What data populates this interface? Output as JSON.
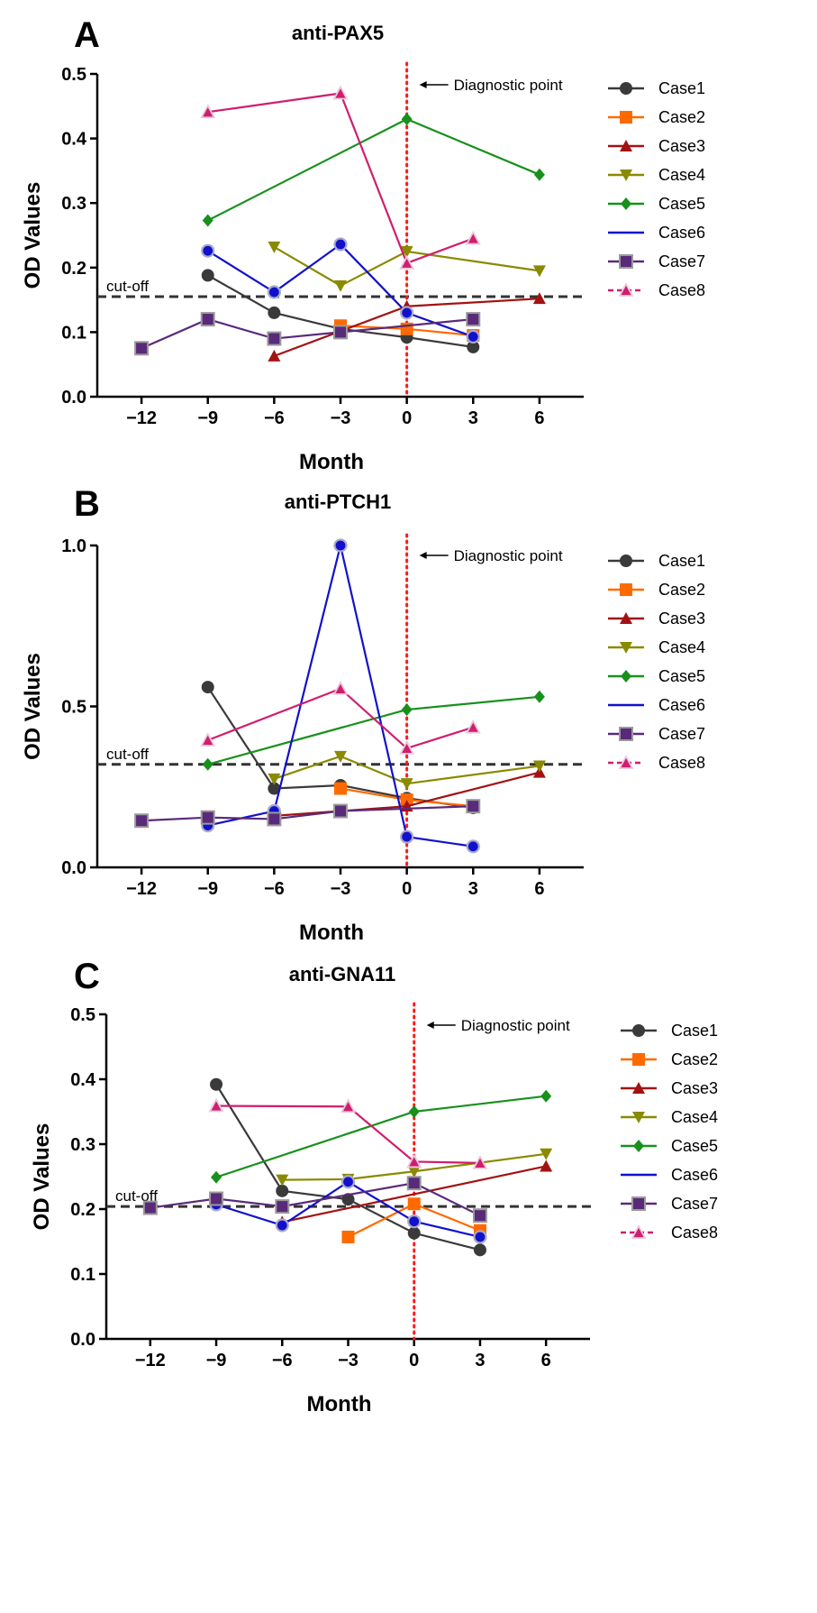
{
  "colors": {
    "Case1": "#3a3a3a",
    "Case2": "#ff6a00",
    "Case3": "#a31212",
    "Case4": "#8a8a00",
    "Case5": "#17911c",
    "Case6": "#1111cc",
    "Case7": "#5a2a7a",
    "Case8": "#d01e6e"
  },
  "chart_data": [
    {
      "type": "line",
      "panel_letter": "A",
      "title": "anti-PAX5",
      "xlabel": "Month",
      "ylabel": "OD Values",
      "xticks": [
        -12,
        -9,
        -6,
        -3,
        0,
        3,
        6
      ],
      "xtick_labels": [
        "−12",
        "−9",
        "−6",
        "−3",
        "0",
        "3",
        "6"
      ],
      "yticks": [
        0,
        0.1,
        0.2,
        0.3,
        0.4,
        0.5
      ],
      "ytick_labels": [
        "0.0",
        "0.1",
        "0.2",
        "0.3",
        "0.4",
        "0.5"
      ],
      "ylim": [
        0,
        0.5
      ],
      "xlim": [
        -14,
        8
      ],
      "cutoff": 0.155,
      "cutoff_label": "cut-off",
      "diagnostic_x": 0,
      "diagnostic_label": "Diagnostic point",
      "legend": [
        "Case1",
        "Case2",
        "Case3",
        "Case4",
        "Case5",
        "Case6",
        "Case7",
        "Case8"
      ],
      "series": [
        {
          "name": "Case1",
          "x": [
            -9,
            -6,
            -3,
            0,
            3
          ],
          "y": [
            0.188,
            0.13,
            0.105,
            0.092,
            0.077
          ]
        },
        {
          "name": "Case2",
          "x": [
            -3,
            0,
            3
          ],
          "y": [
            0.11,
            0.105,
            0.095
          ]
        },
        {
          "name": "Case3",
          "x": [
            -6,
            0,
            6
          ],
          "y": [
            0.063,
            0.14,
            0.152
          ]
        },
        {
          "name": "Case4",
          "x": [
            -6,
            -3,
            0,
            6
          ],
          "y": [
            0.232,
            0.172,
            0.225,
            0.195
          ]
        },
        {
          "name": "Case5",
          "x": [
            -9,
            0,
            6
          ],
          "y": [
            0.273,
            0.43,
            0.344
          ]
        },
        {
          "name": "Case6",
          "x": [
            -9,
            -6,
            -3,
            0,
            3
          ],
          "y": [
            0.226,
            0.162,
            0.236,
            0.13,
            0.093
          ]
        },
        {
          "name": "Case7",
          "x": [
            -12,
            -9,
            -6,
            -3,
            3
          ],
          "y": [
            0.075,
            0.12,
            0.09,
            0.1,
            0.12
          ]
        },
        {
          "name": "Case8",
          "x": [
            -9,
            -3,
            0,
            3
          ],
          "y": [
            0.441,
            0.47,
            0.207,
            0.245
          ]
        }
      ]
    },
    {
      "type": "line",
      "panel_letter": "B",
      "title": "anti-PTCH1",
      "xlabel": "Month",
      "ylabel": "OD Values",
      "xticks": [
        -12,
        -9,
        -6,
        -3,
        0,
        3,
        6
      ],
      "xtick_labels": [
        "−12",
        "−9",
        "−6",
        "−3",
        "0",
        "3",
        "6"
      ],
      "yticks": [
        0,
        0.5,
        1.0
      ],
      "ytick_labels": [
        "0.0",
        "0.5",
        "1.0"
      ],
      "ylim": [
        0,
        1.0
      ],
      "xlim": [
        -14,
        8
      ],
      "cutoff": 0.32,
      "cutoff_label": "cut-off",
      "diagnostic_x": 0,
      "diagnostic_label": "Diagnostic point",
      "legend": [
        "Case1",
        "Case2",
        "Case3",
        "Case4",
        "Case5",
        "Case6",
        "Case7",
        "Case8"
      ],
      "series": [
        {
          "name": "Case1",
          "x": [
            -9,
            -6,
            -3,
            0,
            3
          ],
          "y": [
            0.56,
            0.245,
            0.255,
            0.215,
            0.185
          ]
        },
        {
          "name": "Case2",
          "x": [
            -3,
            0,
            3
          ],
          "y": [
            0.245,
            0.21,
            0.19
          ]
        },
        {
          "name": "Case3",
          "x": [
            -6,
            0,
            6
          ],
          "y": [
            0.16,
            0.19,
            0.295
          ]
        },
        {
          "name": "Case4",
          "x": [
            -6,
            -3,
            0,
            6
          ],
          "y": [
            0.275,
            0.345,
            0.26,
            0.315
          ]
        },
        {
          "name": "Case5",
          "x": [
            -9,
            0,
            6
          ],
          "y": [
            0.32,
            0.49,
            0.53
          ]
        },
        {
          "name": "Case6",
          "x": [
            -9,
            -6,
            -3,
            0,
            3
          ],
          "y": [
            0.13,
            0.175,
            1.0,
            0.095,
            0.065
          ]
        },
        {
          "name": "Case7",
          "x": [
            -12,
            -9,
            -6,
            -3,
            3
          ],
          "y": [
            0.145,
            0.155,
            0.15,
            0.175,
            0.19
          ]
        },
        {
          "name": "Case8",
          "x": [
            -9,
            -3,
            0,
            3
          ],
          "y": [
            0.395,
            0.555,
            0.37,
            0.435
          ]
        }
      ]
    },
    {
      "type": "line",
      "panel_letter": "C",
      "title": "anti-GNA11",
      "xlabel": "Month",
      "ylabel": "OD Values",
      "xticks": [
        -12,
        -9,
        -6,
        -3,
        0,
        3,
        6
      ],
      "xtick_labels": [
        "−12",
        "−9",
        "−6",
        "−3",
        "0",
        "3",
        "6"
      ],
      "yticks": [
        0,
        0.1,
        0.2,
        0.3,
        0.4,
        0.5
      ],
      "ytick_labels": [
        "0.0",
        "0.1",
        "0.2",
        "0.3",
        "0.4",
        "0.5"
      ],
      "ylim": [
        0,
        0.5
      ],
      "xlim": [
        -14,
        8
      ],
      "cutoff": 0.204,
      "cutoff_label": "cut-off",
      "diagnostic_x": 0,
      "diagnostic_label": "Diagnostic point",
      "legend": [
        "Case1",
        "Case2",
        "Case3",
        "Case4",
        "Case5",
        "Case6",
        "Case7",
        "Case8"
      ],
      "series": [
        {
          "name": "Case1",
          "x": [
            -9,
            -6,
            -3,
            0,
            3
          ],
          "y": [
            0.392,
            0.228,
            0.215,
            0.163,
            0.137
          ]
        },
        {
          "name": "Case2",
          "x": [
            -3,
            0,
            3
          ],
          "y": [
            0.157,
            0.208,
            0.167
          ]
        },
        {
          "name": "Case3",
          "x": [
            -6,
            6
          ],
          "y": [
            0.18,
            0.266
          ]
        },
        {
          "name": "Case4",
          "x": [
            -6,
            -3,
            0,
            6
          ],
          "y": [
            0.245,
            0.246,
            0.258,
            0.285
          ]
        },
        {
          "name": "Case5",
          "x": [
            -9,
            0,
            6
          ],
          "y": [
            0.249,
            0.35,
            0.374
          ]
        },
        {
          "name": "Case6",
          "x": [
            -9,
            -6,
            -3,
            0,
            3
          ],
          "y": [
            0.207,
            0.175,
            0.242,
            0.181,
            0.157
          ]
        },
        {
          "name": "Case7",
          "x": [
            -12,
            -9,
            -6,
            0,
            3
          ],
          "y": [
            0.202,
            0.216,
            0.204,
            0.24,
            0.19
          ]
        },
        {
          "name": "Case8",
          "x": [
            -9,
            -3,
            0,
            3
          ],
          "y": [
            0.359,
            0.358,
            0.273,
            0.271
          ]
        }
      ]
    }
  ]
}
